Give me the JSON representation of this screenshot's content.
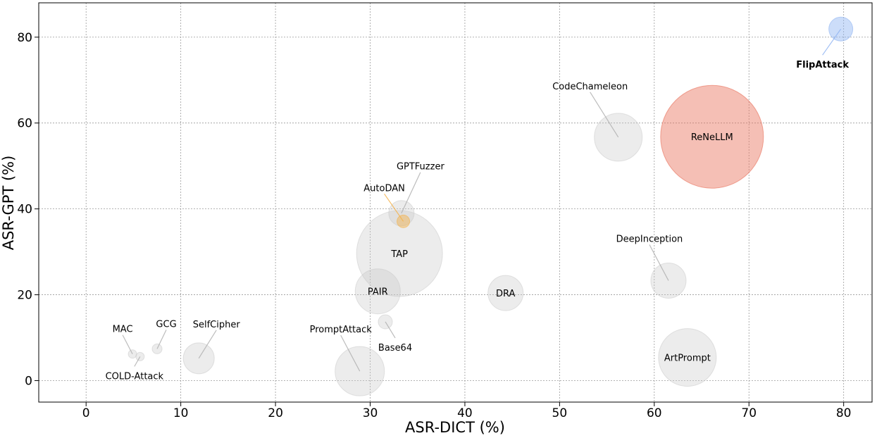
{
  "chart_data": {
    "type": "scatter",
    "xlabel": "ASR-DICT (%)",
    "ylabel": "ASR-GPT (%)",
    "xlim": [
      -5,
      83
    ],
    "ylim": [
      -5,
      88
    ],
    "xticks": [
      0,
      10,
      20,
      30,
      40,
      50,
      60,
      70,
      80
    ],
    "yticks": [
      0,
      20,
      40,
      60,
      80
    ],
    "grid": true,
    "colors": {
      "default": "#c8c8c8",
      "ReNeLLM": "#e8705a",
      "FlipAttack": "#8fb4f2",
      "AutoDAN": "#f5b24a"
    },
    "points": [
      {
        "label": "MAC",
        "x": 4.9,
        "y": 6.2,
        "size": 6
      },
      {
        "label": "COLD-Attack",
        "x": 5.7,
        "y": 5.6,
        "size": 6
      },
      {
        "label": "GCG",
        "x": 7.5,
        "y": 7.4,
        "size": 7
      },
      {
        "label": "SelfCipher",
        "x": 11.9,
        "y": 5.2,
        "size": 22
      },
      {
        "label": "PromptAttack",
        "x": 28.9,
        "y": 2.2,
        "size": 35
      },
      {
        "label": "Base64",
        "x": 31.6,
        "y": 13.7,
        "size": 10
      },
      {
        "label": "PAIR",
        "x": 30.8,
        "y": 20.8,
        "size": 32
      },
      {
        "label": "TAP",
        "x": 33.1,
        "y": 29.6,
        "size": 61
      },
      {
        "label": "GPTFuzzer",
        "x": 33.3,
        "y": 39.0,
        "size": 18
      },
      {
        "label": "AutoDAN",
        "x": 33.5,
        "y": 37.1,
        "size": 9
      },
      {
        "label": "DRA",
        "x": 44.3,
        "y": 20.4,
        "size": 25
      },
      {
        "label": "DeepInception",
        "x": 61.5,
        "y": 23.3,
        "size": 25
      },
      {
        "label": "ArtPrompt",
        "x": 63.5,
        "y": 5.4,
        "size": 41
      },
      {
        "label": "CodeChameleon",
        "x": 56.2,
        "y": 56.7,
        "size": 34
      },
      {
        "label": "ReNeLLM",
        "x": 66.1,
        "y": 56.8,
        "size": 73
      },
      {
        "label": "FlipAttack",
        "x": 79.7,
        "y": 81.9,
        "size": 17,
        "bold": true
      }
    ]
  }
}
